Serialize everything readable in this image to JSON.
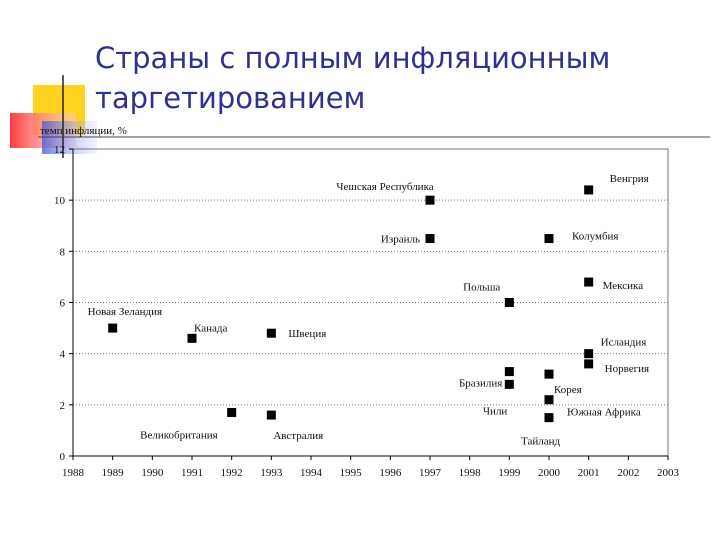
{
  "chart_data": {
    "type": "scatter",
    "title": "Страны с полным инфляционным таргетированием",
    "y_label": "темп инфляции, %",
    "x": [
      1989,
      1991,
      1992,
      1993,
      1993,
      1997,
      1997,
      1999,
      1999,
      1999,
      2000,
      2000,
      2000,
      2000,
      2001,
      2001,
      2001,
      2001
    ],
    "values": [
      5.0,
      4.6,
      1.7,
      4.8,
      1.6,
      10.0,
      8.5,
      6.0,
      3.3,
      2.8,
      8.5,
      3.2,
      2.2,
      1.5,
      10.4,
      6.8,
      4.0,
      3.6
    ],
    "labels": [
      "Новая Зеландия",
      "Канада",
      "Великобритания",
      "Швеция",
      "Австралия",
      "Чешская Республика",
      "Израиль",
      "Польша",
      "Бразилия",
      "Чили",
      "Колумбия",
      "Корея",
      "Южная Африка",
      "Тайланд",
      "Венгрия",
      "Мексика",
      "Исландия",
      "Норвегия"
    ],
    "color": "#000000",
    "xlim": [
      1988,
      2003
    ],
    "xticks": [
      1988,
      1989,
      1990,
      1991,
      1992,
      1993,
      1994,
      1995,
      1996,
      1997,
      1998,
      1999,
      2000,
      2001,
      2002,
      2003
    ],
    "ylim": [
      0,
      12
    ],
    "yticks": [
      0,
      2,
      4,
      6,
      8,
      10,
      12
    ],
    "grid": true
  }
}
